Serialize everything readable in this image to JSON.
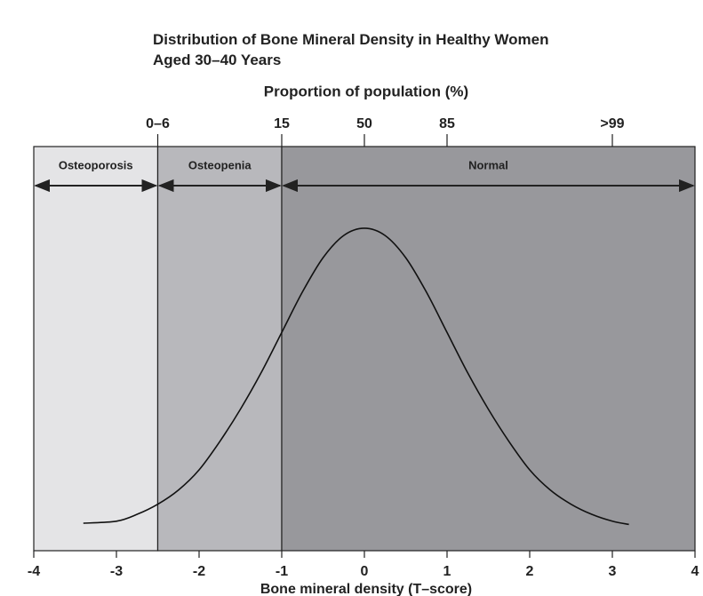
{
  "chart_data": {
    "type": "line",
    "title": "Distribution of Bone Mineral Density in Healthy Women Aged 30–40 Years",
    "top_axis_label": "Proportion of population (%)",
    "top_xticks": [
      {
        "value": -2.5,
        "label": "0–6"
      },
      {
        "value": -1,
        "label": "15"
      },
      {
        "value": 0,
        "label": "50"
      },
      {
        "value": 1,
        "label": "85"
      },
      {
        "value": 3,
        "label": ">99"
      }
    ],
    "xlabel": "Bone mineral density (T–score)",
    "xlim": [
      -4,
      4
    ],
    "xticks": [
      -4,
      -3,
      -2,
      -1,
      0,
      1,
      2,
      3,
      4
    ],
    "ylim": [
      0,
      1
    ],
    "regions": [
      {
        "name": "Osteoporosis",
        "from": -4,
        "to": -2.5,
        "color": "#e4e4e6"
      },
      {
        "name": "Osteopenia",
        "from": -2.5,
        "to": -1,
        "color": "#b8b8bc"
      },
      {
        "name": "Normal",
        "from": -1,
        "to": 4,
        "color": "#98989c"
      }
    ],
    "x": [
      -3.4,
      -3.0,
      -2.75,
      -2.5,
      -2.25,
      -2,
      -1.75,
      -1.5,
      -1.25,
      -1,
      -0.75,
      -0.5,
      -0.25,
      0,
      0.25,
      0.5,
      0.75,
      1,
      1.25,
      1.5,
      1.75,
      2,
      2.25,
      2.5,
      2.75,
      3,
      3.2
    ],
    "values": [
      0.068,
      0.073,
      0.09,
      0.115,
      0.15,
      0.2,
      0.27,
      0.35,
      0.44,
      0.54,
      0.64,
      0.725,
      0.78,
      0.798,
      0.78,
      0.725,
      0.64,
      0.54,
      0.44,
      0.35,
      0.27,
      0.2,
      0.15,
      0.115,
      0.09,
      0.073,
      0.065
    ],
    "color": "#111111"
  }
}
